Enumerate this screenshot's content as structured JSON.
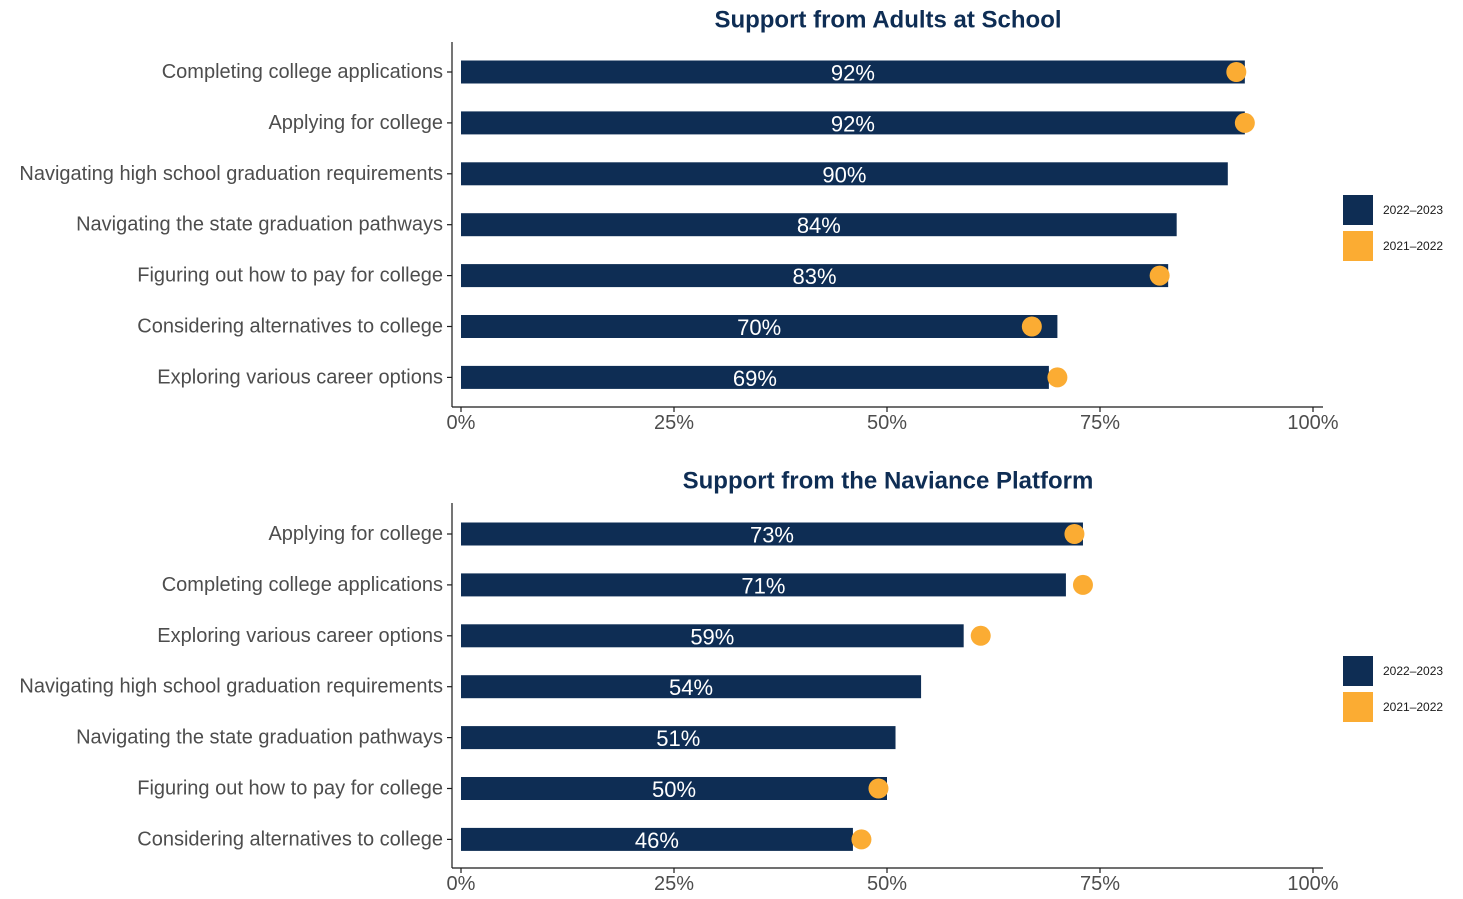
{
  "colors": {
    "bar": "#0e2d54",
    "dot": "#fbac33",
    "title": "#0e2d54",
    "axis": "#1a1a1a"
  },
  "legend": [
    {
      "label": "2022–2023",
      "color": "#0e2d54"
    },
    {
      "label": "2021–2022",
      "color": "#fbac33"
    }
  ],
  "chart_data": [
    {
      "type": "bar",
      "orientation": "horizontal",
      "title": "Support from Adults at School",
      "categories": [
        "Completing college applications",
        "Applying for college",
        "Navigating high school graduation requirements",
        "Navigating the state graduation pathways",
        "Figuring out how to pay for college",
        "Considering alternatives to college",
        "Exploring various career options"
      ],
      "series": [
        {
          "name": "2022–2023",
          "values": [
            92,
            92,
            90,
            84,
            83,
            70,
            69
          ]
        },
        {
          "name": "2021–2022",
          "values": [
            91,
            92,
            null,
            null,
            82,
            67,
            70
          ]
        }
      ],
      "data_labels": [
        "92%",
        "92%",
        "90%",
        "84%",
        "83%",
        "70%",
        "69%"
      ],
      "xlim": [
        0,
        100
      ],
      "x_ticks": [
        0,
        25,
        50,
        75,
        100
      ],
      "x_tick_labels": [
        "0%",
        "25%",
        "50%",
        "75%",
        "100%"
      ],
      "legend_position": "right"
    },
    {
      "type": "bar",
      "orientation": "horizontal",
      "title": "Support from the Naviance Platform",
      "categories": [
        "Applying for college",
        "Completing college applications",
        "Exploring various career options",
        "Navigating high school graduation requirements",
        "Navigating the state graduation pathways",
        "Figuring out how to pay for college",
        "Considering alternatives to college"
      ],
      "series": [
        {
          "name": "2022–2023",
          "values": [
            73,
            71,
            59,
            54,
            51,
            50,
            46
          ]
        },
        {
          "name": "2021–2022",
          "values": [
            72,
            73,
            61,
            null,
            null,
            49,
            47
          ]
        }
      ],
      "data_labels": [
        "73%",
        "71%",
        "59%",
        "54%",
        "51%",
        "50%",
        "46%"
      ],
      "xlim": [
        0,
        100
      ],
      "x_ticks": [
        0,
        25,
        50,
        75,
        100
      ],
      "x_tick_labels": [
        "0%",
        "25%",
        "50%",
        "75%",
        "100%"
      ],
      "legend_position": "right"
    }
  ]
}
